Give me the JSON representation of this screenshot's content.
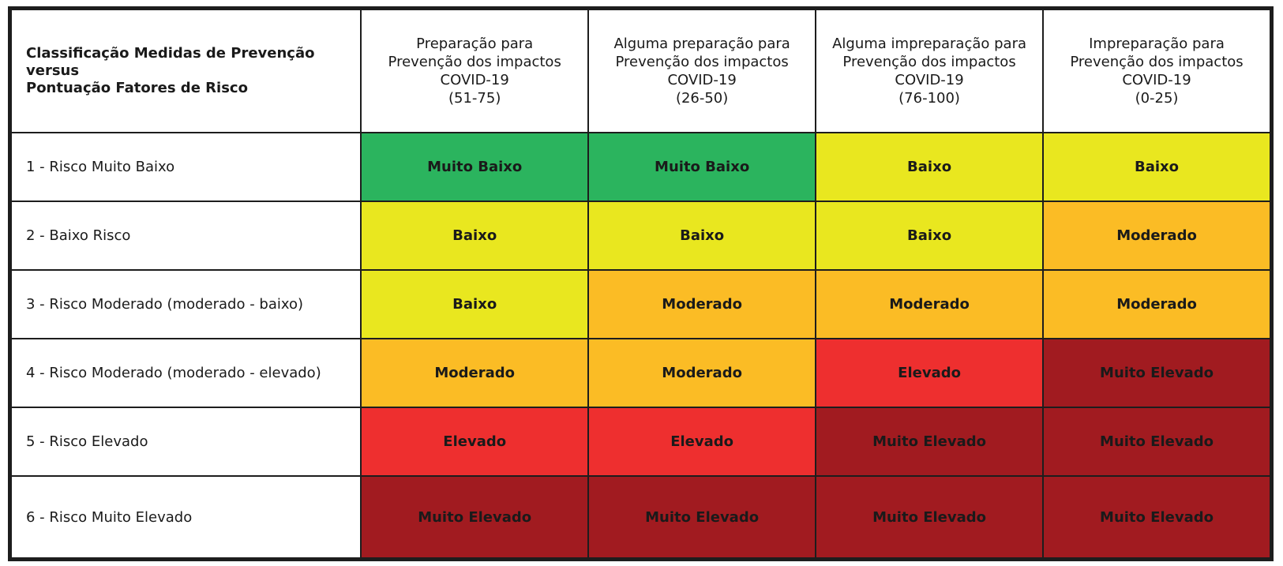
{
  "header": {
    "corner_lines": [
      "Classificação Medidas de Prevenção",
      "versus",
      "Pontuação Fatores de Risco"
    ],
    "columns": [
      {
        "lines": [
          "Preparação para",
          "Prevenção dos impactos",
          "COVID-19",
          "(51-75)"
        ]
      },
      {
        "lines": [
          "Alguma preparação para",
          "Prevenção dos impactos",
          "COVID-19",
          "(26-50)"
        ]
      },
      {
        "lines": [
          "Alguma impreparação para",
          "Prevenção dos impactos",
          "COVID-19",
          "(76-100)"
        ]
      },
      {
        "lines": [
          "Impreparação para",
          "Prevenção dos impactos",
          "COVID-19",
          "(0-25)"
        ]
      }
    ]
  },
  "levels": {
    "Muito Baixo": "#2bb45e",
    "Baixo": "#e9e71f",
    "Moderado": "#fbbc25",
    "Elevado": "#ee2f2f",
    "Muito Elevado": "#a11b20"
  },
  "rows": [
    {
      "label": "1 - Risco Muito Baixo",
      "cells": [
        "Muito Baixo",
        "Muito Baixo",
        "Baixo",
        "Baixo"
      ]
    },
    {
      "label": "2 - Baixo Risco",
      "cells": [
        "Baixo",
        "Baixo",
        "Baixo",
        "Moderado"
      ]
    },
    {
      "label": "3 - Risco Moderado (moderado - baixo)",
      "cells": [
        "Baixo",
        "Moderado",
        "Moderado",
        "Moderado"
      ]
    },
    {
      "label": "4 - Risco Moderado (moderado - elevado)",
      "cells": [
        "Moderado",
        "Moderado",
        "Elevado",
        "Muito Elevado"
      ]
    },
    {
      "label": "5 - Risco Elevado",
      "cells": [
        "Elevado",
        "Elevado",
        "Muito Elevado",
        "Muito Elevado"
      ]
    },
    {
      "label": "6 - Risco Muito Elevado",
      "cells": [
        "Muito Elevado",
        "Muito Elevado",
        "Muito Elevado",
        "Muito Elevado"
      ]
    }
  ]
}
